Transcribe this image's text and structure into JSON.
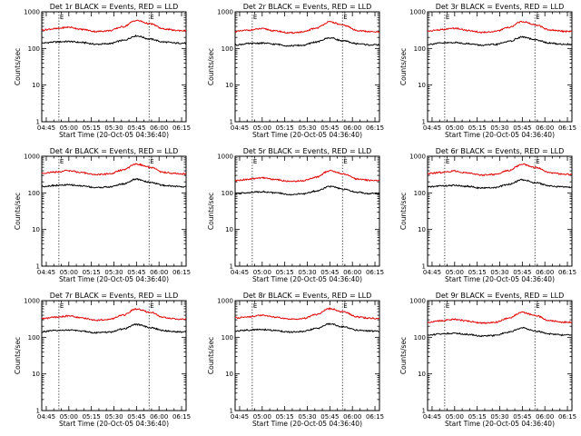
{
  "chart_data": [
    {
      "type": "line",
      "title": "Det 1r BLACK = Events, RED = LLD",
      "xlabel": "Start Time (20-Oct-05 04:36:40)",
      "ylabel": "Counts/sec",
      "yscale": "log",
      "ylim": [
        1,
        1000
      ],
      "xlim": [
        4.7,
        6.3
      ],
      "x_ticks": [
        4.75,
        5.0,
        5.25,
        5.5,
        5.75,
        6.0,
        6.25
      ],
      "x_tick_labels": [
        "04:45",
        "05:00",
        "05:15",
        "05:30",
        "05:45",
        "06:00",
        "06:15"
      ],
      "y_ticks": [
        1,
        10,
        100,
        1000
      ],
      "y_tick_labels": [
        "1",
        "10",
        "100",
        "1000"
      ],
      "markers": {
        "x": [
          4.89,
          5.89
        ],
        "labels": [
          "E",
          "E"
        ]
      },
      "series": [
        {
          "name": "Events",
          "color": "#000000",
          "x": [
            4.7,
            4.85,
            5.0,
            5.15,
            5.3,
            5.45,
            5.6,
            5.75,
            5.9,
            6.05,
            6.2,
            6.3
          ],
          "values": [
            140,
            150,
            155,
            145,
            130,
            135,
            165,
            220,
            180,
            150,
            140,
            140
          ]
        },
        {
          "name": "LLD",
          "color": "#e00000",
          "x": [
            4.7,
            4.85,
            5.0,
            5.15,
            5.3,
            5.45,
            5.6,
            5.75,
            5.9,
            6.05,
            6.2,
            6.3
          ],
          "values": [
            320,
            345,
            380,
            330,
            290,
            305,
            390,
            580,
            470,
            340,
            310,
            305
          ]
        }
      ]
    },
    {
      "type": "line",
      "title": "Det 2r BLACK = Events, RED = LLD",
      "xlabel": "Start Time (20-Oct-05 04:36:40)",
      "ylabel": "Counts/sec",
      "yscale": "log",
      "ylim": [
        1,
        1000
      ],
      "xlim": [
        4.7,
        6.3
      ],
      "x_ticks": [
        4.75,
        5.0,
        5.25,
        5.5,
        5.75,
        6.0,
        6.25
      ],
      "x_tick_labels": [
        "04:45",
        "05:00",
        "05:15",
        "05:30",
        "05:45",
        "06:00",
        "06:15"
      ],
      "y_ticks": [
        1,
        10,
        100,
        1000
      ],
      "y_tick_labels": [
        "1",
        "10",
        "100",
        "1000"
      ],
      "markers": {
        "x": [
          4.89,
          5.89
        ],
        "labels": [
          "E",
          "E"
        ]
      },
      "series": [
        {
          "name": "Events",
          "color": "#000000",
          "x": [
            4.7,
            4.85,
            5.0,
            5.15,
            5.3,
            5.45,
            5.6,
            5.75,
            5.9,
            6.05,
            6.2,
            6.3
          ],
          "values": [
            125,
            135,
            140,
            130,
            118,
            122,
            150,
            195,
            160,
            135,
            125,
            125
          ]
        },
        {
          "name": "LLD",
          "color": "#e00000",
          "x": [
            4.7,
            4.85,
            5.0,
            5.15,
            5.3,
            5.45,
            5.6,
            5.75,
            5.9,
            6.05,
            6.2,
            6.3
          ],
          "values": [
            290,
            315,
            345,
            300,
            265,
            280,
            360,
            530,
            430,
            310,
            285,
            280
          ]
        }
      ]
    },
    {
      "type": "line",
      "title": "Det 3r BLACK = Events, RED = LLD",
      "xlabel": "Start Time (20-Oct-05 04:36:40)",
      "ylabel": "Counts/sec",
      "yscale": "log",
      "ylim": [
        1,
        1000
      ],
      "xlim": [
        4.7,
        6.3
      ],
      "x_ticks": [
        4.75,
        5.0,
        5.25,
        5.5,
        5.75,
        6.0,
        6.25
      ],
      "x_tick_labels": [
        "04:45",
        "05:00",
        "05:15",
        "05:30",
        "05:45",
        "06:00",
        "06:15"
      ],
      "y_ticks": [
        1,
        10,
        100,
        1000
      ],
      "y_tick_labels": [
        "1",
        "10",
        "100",
        "1000"
      ],
      "markers": {
        "x": [
          4.89,
          5.89
        ],
        "labels": [
          "E",
          "E"
        ]
      },
      "series": [
        {
          "name": "Events",
          "color": "#000000",
          "x": [
            4.7,
            4.85,
            5.0,
            5.15,
            5.3,
            5.45,
            5.6,
            5.75,
            5.9,
            6.05,
            6.2,
            6.3
          ],
          "values": [
            130,
            140,
            145,
            135,
            122,
            128,
            155,
            205,
            170,
            140,
            130,
            130
          ]
        },
        {
          "name": "LLD",
          "color": "#e00000",
          "x": [
            4.7,
            4.85,
            5.0,
            5.15,
            5.3,
            5.45,
            5.6,
            5.75,
            5.9,
            6.05,
            6.2,
            6.3
          ],
          "values": [
            300,
            325,
            355,
            310,
            275,
            290,
            370,
            540,
            440,
            320,
            295,
            290
          ]
        }
      ]
    },
    {
      "type": "line",
      "title": "Det 4r BLACK = Events, RED = LLD",
      "xlabel": "Start Time (20-Oct-05 04:36:40)",
      "ylabel": "Counts/sec",
      "yscale": "log",
      "ylim": [
        1,
        1000
      ],
      "xlim": [
        4.7,
        6.3
      ],
      "x_ticks": [
        4.75,
        5.0,
        5.25,
        5.5,
        5.75,
        6.0,
        6.25
      ],
      "x_tick_labels": [
        "04:45",
        "05:00",
        "05:15",
        "05:30",
        "05:45",
        "06:00",
        "06:15"
      ],
      "y_ticks": [
        1,
        10,
        100,
        1000
      ],
      "y_tick_labels": [
        "1",
        "10",
        "100",
        "1000"
      ],
      "markers": {
        "x": [
          4.89,
          5.89
        ],
        "labels": [
          "E",
          "E"
        ]
      },
      "series": [
        {
          "name": "Events",
          "color": "#000000",
          "x": [
            4.7,
            4.85,
            5.0,
            5.15,
            5.3,
            5.45,
            5.6,
            5.75,
            5.9,
            6.05,
            6.2,
            6.3
          ],
          "values": [
            150,
            160,
            165,
            155,
            140,
            145,
            175,
            235,
            195,
            160,
            150,
            148
          ]
        },
        {
          "name": "LLD",
          "color": "#e00000",
          "x": [
            4.7,
            4.85,
            5.0,
            5.15,
            5.3,
            5.45,
            5.6,
            5.75,
            5.9,
            6.05,
            6.2,
            6.3
          ],
          "values": [
            345,
            370,
            405,
            355,
            315,
            330,
            420,
            610,
            500,
            365,
            335,
            330
          ]
        }
      ]
    },
    {
      "type": "line",
      "title": "Det 5r BLACK = Events, RED = LLD",
      "xlabel": "Start Time (20-Oct-05 04:36:40)",
      "ylabel": "Counts/sec",
      "yscale": "log",
      "ylim": [
        1,
        1000
      ],
      "xlim": [
        4.7,
        6.3
      ],
      "x_ticks": [
        4.75,
        5.0,
        5.25,
        5.5,
        5.75,
        6.0,
        6.25
      ],
      "x_tick_labels": [
        "04:45",
        "05:00",
        "05:15",
        "05:30",
        "05:45",
        "06:00",
        "06:15"
      ],
      "y_ticks": [
        1,
        10,
        100,
        1000
      ],
      "y_tick_labels": [
        "1",
        "10",
        "100",
        "1000"
      ],
      "markers": {
        "x": [
          4.89,
          5.89
        ],
        "labels": [
          "E",
          "E"
        ]
      },
      "series": [
        {
          "name": "Events",
          "color": "#000000",
          "x": [
            4.7,
            4.85,
            5.0,
            5.15,
            5.3,
            5.45,
            5.6,
            5.75,
            5.9,
            6.05,
            6.2,
            6.3
          ],
          "values": [
            95,
            102,
            108,
            100,
            90,
            94,
            112,
            150,
            125,
            104,
            96,
            95
          ]
        },
        {
          "name": "LLD",
          "color": "#e00000",
          "x": [
            4.7,
            4.85,
            5.0,
            5.15,
            5.3,
            5.45,
            5.6,
            5.75,
            5.9,
            6.05,
            6.2,
            6.3
          ],
          "values": [
            215,
            235,
            260,
            230,
            205,
            215,
            270,
            400,
            330,
            240,
            220,
            215
          ]
        }
      ]
    },
    {
      "type": "line",
      "title": "Det 6r BLACK = Events, RED = LLD",
      "xlabel": "Start Time (20-Oct-05 04:36:40)",
      "ylabel": "Counts/sec",
      "yscale": "log",
      "ylim": [
        1,
        1000
      ],
      "xlim": [
        4.7,
        6.3
      ],
      "x_ticks": [
        4.75,
        5.0,
        5.25,
        5.5,
        5.75,
        6.0,
        6.25
      ],
      "x_tick_labels": [
        "04:45",
        "05:00",
        "05:15",
        "05:30",
        "05:45",
        "06:00",
        "06:15"
      ],
      "y_ticks": [
        1,
        10,
        100,
        1000
      ],
      "y_tick_labels": [
        "1",
        "10",
        "100",
        "1000"
      ],
      "markers": {
        "x": [
          4.89,
          5.89
        ],
        "labels": [
          "E",
          "E"
        ]
      },
      "series": [
        {
          "name": "Events",
          "color": "#000000",
          "x": [
            4.7,
            4.85,
            5.0,
            5.15,
            5.3,
            5.45,
            5.6,
            5.75,
            5.9,
            6.05,
            6.2,
            6.3
          ],
          "values": [
            145,
            155,
            160,
            150,
            135,
            140,
            170,
            228,
            188,
            155,
            145,
            143
          ]
        },
        {
          "name": "LLD",
          "color": "#e00000",
          "x": [
            4.7,
            4.85,
            5.0,
            5.15,
            5.3,
            5.45,
            5.6,
            5.75,
            5.9,
            6.05,
            6.2,
            6.3
          ],
          "values": [
            335,
            360,
            395,
            345,
            305,
            320,
            410,
            600,
            490,
            355,
            325,
            320
          ]
        }
      ]
    },
    {
      "type": "line",
      "title": "Det 7r BLACK = Events, RED = LLD",
      "xlabel": "Start Time (20-Oct-05 04:36:40)",
      "ylabel": "Counts/sec",
      "yscale": "log",
      "ylim": [
        1,
        1000
      ],
      "xlim": [
        4.7,
        6.3
      ],
      "x_ticks": [
        4.75,
        5.0,
        5.25,
        5.5,
        5.75,
        6.0,
        6.25
      ],
      "x_tick_labels": [
        "04:45",
        "05:00",
        "05:15",
        "05:30",
        "05:45",
        "06:00",
        "06:15"
      ],
      "y_ticks": [
        1,
        10,
        100,
        1000
      ],
      "y_tick_labels": [
        "1",
        "10",
        "100",
        "1000"
      ],
      "markers": {
        "x": [
          4.89,
          5.89
        ],
        "labels": [
          "E",
          "E"
        ]
      },
      "series": [
        {
          "name": "Events",
          "color": "#000000",
          "x": [
            4.7,
            4.85,
            5.0,
            5.15,
            5.3,
            5.45,
            5.6,
            5.75,
            5.9,
            6.05,
            6.2,
            6.3
          ],
          "values": [
            142,
            152,
            158,
            148,
            133,
            138,
            168,
            225,
            185,
            152,
            142,
            140
          ]
        },
        {
          "name": "LLD",
          "color": "#e00000",
          "x": [
            4.7,
            4.85,
            5.0,
            5.15,
            5.3,
            5.45,
            5.6,
            5.75,
            5.9,
            6.05,
            6.2,
            6.3
          ],
          "values": [
            325,
            350,
            385,
            335,
            295,
            310,
            400,
            590,
            480,
            345,
            315,
            310
          ]
        }
      ]
    },
    {
      "type": "line",
      "title": "Det 8r BLACK = Events, RED = LLD",
      "xlabel": "Start Time (20-Oct-05 04:36:40)",
      "ylabel": "Counts/sec",
      "yscale": "log",
      "ylim": [
        1,
        1000
      ],
      "xlim": [
        4.7,
        6.3
      ],
      "x_ticks": [
        4.75,
        5.0,
        5.25,
        5.5,
        5.75,
        6.0,
        6.25
      ],
      "x_tick_labels": [
        "04:45",
        "05:00",
        "05:15",
        "05:30",
        "05:45",
        "06:00",
        "06:15"
      ],
      "y_ticks": [
        1,
        10,
        100,
        1000
      ],
      "y_tick_labels": [
        "1",
        "10",
        "100",
        "1000"
      ],
      "markers": {
        "x": [
          4.89,
          5.89
        ],
        "labels": [
          "E",
          "E"
        ]
      },
      "series": [
        {
          "name": "Events",
          "color": "#000000",
          "x": [
            4.7,
            4.85,
            5.0,
            5.15,
            5.3,
            5.45,
            5.6,
            5.75,
            5.9,
            6.05,
            6.2,
            6.3
          ],
          "values": [
            148,
            158,
            163,
            153,
            138,
            143,
            173,
            232,
            192,
            158,
            148,
            146
          ]
        },
        {
          "name": "LLD",
          "color": "#e00000",
          "x": [
            4.7,
            4.85,
            5.0,
            5.15,
            5.3,
            5.45,
            5.6,
            5.75,
            5.9,
            6.05,
            6.2,
            6.3
          ],
          "values": [
            340,
            365,
            400,
            350,
            310,
            325,
            415,
            605,
            495,
            360,
            330,
            325
          ]
        }
      ]
    },
    {
      "type": "line",
      "title": "Det 9r BLACK = Events, RED = LLD",
      "xlabel": "Start Time (20-Oct-05 04:36:40)",
      "ylabel": "Counts/sec",
      "yscale": "log",
      "ylim": [
        1,
        1000
      ],
      "xlim": [
        4.7,
        6.3
      ],
      "x_ticks": [
        4.75,
        5.0,
        5.25,
        5.5,
        5.75,
        6.0,
        6.25
      ],
      "x_tick_labels": [
        "04:45",
        "05:00",
        "05:15",
        "05:30",
        "05:45",
        "06:00",
        "06:15"
      ],
      "y_ticks": [
        1,
        10,
        100,
        1000
      ],
      "y_tick_labels": [
        "1",
        "10",
        "100",
        "1000"
      ],
      "markers": {
        "x": [
          4.89,
          5.89
        ],
        "labels": [
          "E",
          "E"
        ]
      },
      "series": [
        {
          "name": "Events",
          "color": "#000000",
          "x": [
            4.7,
            4.85,
            5.0,
            5.15,
            5.3,
            5.45,
            5.6,
            5.75,
            5.9,
            6.05,
            6.2,
            6.3
          ],
          "values": [
            115,
            124,
            130,
            120,
            108,
            112,
            138,
            180,
            148,
            125,
            115,
            114
          ]
        },
        {
          "name": "LLD",
          "color": "#e00000",
          "x": [
            4.7,
            4.85,
            5.0,
            5.15,
            5.3,
            5.45,
            5.6,
            5.75,
            5.9,
            6.05,
            6.2,
            6.3
          ],
          "values": [
            260,
            285,
            310,
            275,
            245,
            258,
            330,
            480,
            390,
            285,
            260,
            256
          ]
        }
      ]
    }
  ]
}
